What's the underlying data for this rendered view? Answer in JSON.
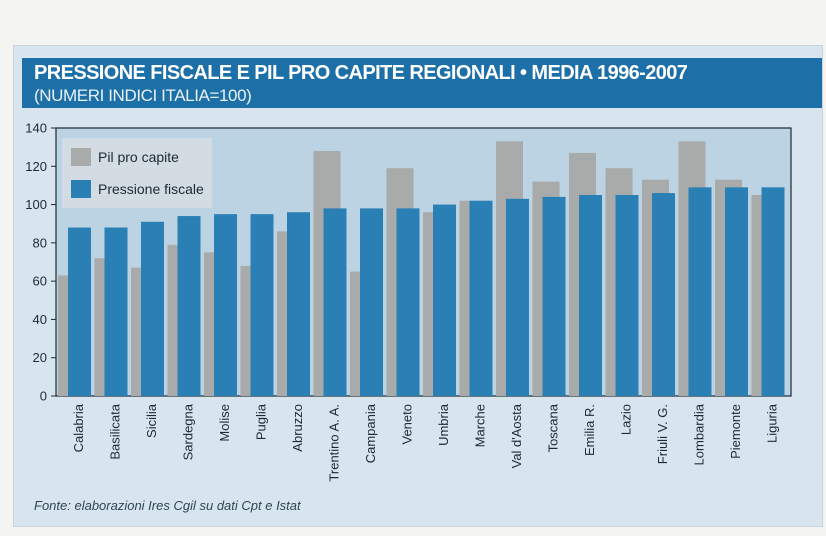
{
  "header": {
    "title": "PRESSIONE FISCALE E PIL PRO CAPITE REGIONALI • MEDIA 1996-2007",
    "subtitle": "(NUMERI INDICI ITALIA=100)"
  },
  "footer": {
    "source": "Fonte: elaborazioni Ires Cgil su dati Cpt e Istat"
  },
  "colors": {
    "banner": "#1d6fa8",
    "pressione": "#2a7fb4",
    "pil": "#a9aaaa",
    "plot_bg": "#bcd3e3"
  },
  "chart_data": {
    "type": "bar",
    "title": "PRESSIONE FISCALE E PIL PRO CAPITE REGIONALI • MEDIA 1996-2007",
    "subtitle": "(NUMERI INDICI ITALIA=100)",
    "categories": [
      "Calabria",
      "Basilicata",
      "Sicilia",
      "Sardegna",
      "Molise",
      "Puglia",
      "Abruzzo",
      "Trentino A. A.",
      "Campania",
      "Veneto",
      "Umbria",
      "Marche",
      "Val d'Aosta",
      "Toscana",
      "Emilia R.",
      "Lazio",
      "Friuli V. G.",
      "Lombardia",
      "Piemonte",
      "Liguria"
    ],
    "series": [
      {
        "name": "Pil pro capite",
        "values": [
          63,
          72,
          67,
          79,
          75,
          68,
          86,
          128,
          65,
          119,
          96,
          102,
          133,
          112,
          127,
          119,
          113,
          133,
          113,
          105
        ]
      },
      {
        "name": "Pressione fiscale",
        "values": [
          88,
          88,
          91,
          94,
          95,
          95,
          96,
          98,
          98,
          98,
          100,
          102,
          103,
          104,
          105,
          105,
          106,
          109,
          109,
          109
        ]
      }
    ],
    "ylim": [
      0,
      140
    ],
    "yticks": [
      "0",
      "20",
      "40",
      "60",
      "80",
      "100",
      "120",
      "140"
    ],
    "legend_position": "top-left",
    "grid": false
  }
}
